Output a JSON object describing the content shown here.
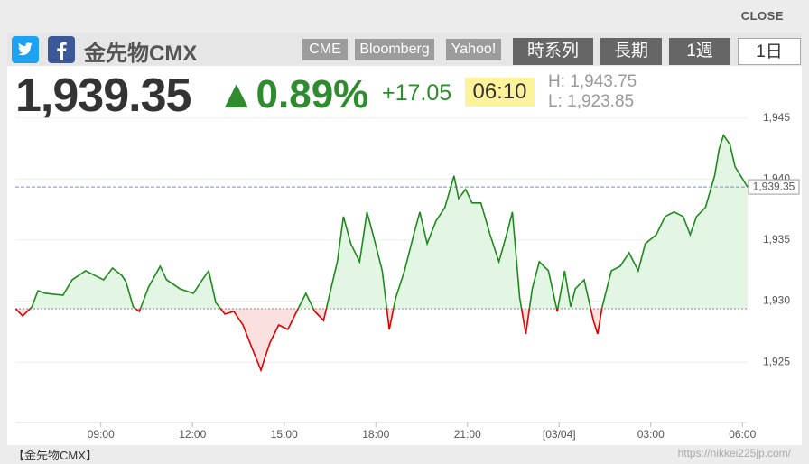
{
  "header": {
    "close": "CLOSE",
    "title": "金先物CMX",
    "sources": [
      "CME",
      "Bloomberg",
      "Yahoo!"
    ],
    "tabs": [
      "時系列",
      "長期",
      "1週",
      "1日"
    ],
    "active_tab": 3
  },
  "quote": {
    "price": "1,939.35",
    "change_pct": "▲0.89%",
    "change": "+17.05",
    "time": "06:10",
    "high": "H: 1,943.75",
    "low": "L: 1,923.85"
  },
  "footer": {
    "label": "【金先物CMX】",
    "url": "https://nikkei225jp.com/"
  },
  "chart_data": {
    "type": "line",
    "x": [
      6.21,
      6.44,
      6.74,
      6.94,
      7.18,
      7.76,
      8.06,
      8.5,
      8.79,
      9.09,
      9.38,
      9.68,
      9.82,
      10.06,
      10.26,
      10.56,
      10.94,
      11.15,
      11.59,
      12.03,
      12.32,
      12.53,
      12.76,
      13.06,
      13.35,
      13.65,
      13.94,
      14.24,
      14.38,
      14.53,
      14.82,
      15.12,
      15.41,
      15.71,
      16.0,
      16.29,
      16.53,
      16.74,
      16.94,
      17.18,
      17.47,
      17.71,
      17.91,
      18.21,
      18.44,
      18.65,
      18.94,
      19.24,
      19.44,
      19.68,
      19.97,
      20.26,
      20.56,
      20.71,
      20.94,
      21.15,
      21.44,
      21.74,
      22.03,
      22.32,
      22.47,
      22.71,
      22.91,
      23.12,
      23.35,
      23.65,
      23.94,
      24.18,
      24.38,
      24.53,
      24.82,
      25.12,
      25.26,
      25.41,
      25.71,
      26.0,
      26.29,
      26.59,
      26.82,
      27.18,
      27.47,
      27.76,
      28.06,
      28.29,
      28.5,
      28.79,
      29.09,
      29.24,
      29.38,
      29.59,
      29.76,
      30.17
    ],
    "series": [
      {
        "color": "#1e8a1e",
        "down_color": "#e00000",
        "values": [
          1929.37,
          1928.78,
          1929.52,
          1930.85,
          1930.63,
          1930.48,
          1931.74,
          1932.48,
          1932.11,
          1931.74,
          1932.7,
          1932.11,
          1931.59,
          1929.52,
          1929.15,
          1931.15,
          1932.85,
          1931.74,
          1931.0,
          1930.63,
          1931.74,
          1932.48,
          1929.89,
          1928.93,
          1929.15,
          1928.04,
          1926.19,
          1924.33,
          1925.44,
          1926.56,
          1928.04,
          1927.67,
          1929.15,
          1930.63,
          1929.15,
          1928.41,
          1931.0,
          1933.22,
          1936.93,
          1934.7,
          1933.22,
          1937.3,
          1935.44,
          1932.48,
          1927.67,
          1930.26,
          1932.48,
          1935.44,
          1937.3,
          1934.7,
          1936.56,
          1937.67,
          1940.26,
          1938.41,
          1939.15,
          1938.04,
          1938.04,
          1935.44,
          1933.22,
          1935.81,
          1937.3,
          1930.26,
          1927.3,
          1931.0,
          1933.22,
          1932.48,
          1929.15,
          1932.48,
          1929.52,
          1931.0,
          1931.74,
          1928.41,
          1927.3,
          1929.52,
          1932.48,
          1932.85,
          1933.96,
          1932.48,
          1934.7,
          1935.44,
          1936.93,
          1937.3,
          1936.93,
          1935.44,
          1936.93,
          1937.67,
          1940.26,
          1942.48,
          1943.59,
          1942.85,
          1941.0,
          1939.35
        ],
        "fill_color": "#e3f5e3",
        "down_fill_color": "#fbe0e0"
      }
    ],
    "xlim": [
      6.2,
      30.17
    ],
    "ylim": [
      1920.05,
      1945.2
    ],
    "xticks": [
      {
        "value": 9,
        "label": "09:00"
      },
      {
        "value": 12,
        "label": "12:00"
      },
      {
        "value": 15,
        "label": "15:00"
      },
      {
        "value": 18,
        "label": "18:00"
      },
      {
        "value": 21,
        "label": "21:00"
      },
      {
        "value": 24,
        "label": "[03/04]",
        "color": "#d4a52a"
      },
      {
        "value": 27,
        "label": "03:00"
      },
      {
        "value": 30,
        "label": "06:00"
      }
    ],
    "yticks": [
      {
        "value": 1925,
        "label": "1,925"
      },
      {
        "value": 1930,
        "label": "1,930"
      },
      {
        "value": 1935,
        "label": "1,935"
      },
      {
        "value": 1940,
        "label": "1,940"
      },
      {
        "value": 1945,
        "label": "1,945"
      }
    ],
    "grid": true,
    "baseline": 1929.37,
    "price_line": {
      "value": 1939.35,
      "label": "1,939.35",
      "color": "#7a8fc0"
    }
  }
}
